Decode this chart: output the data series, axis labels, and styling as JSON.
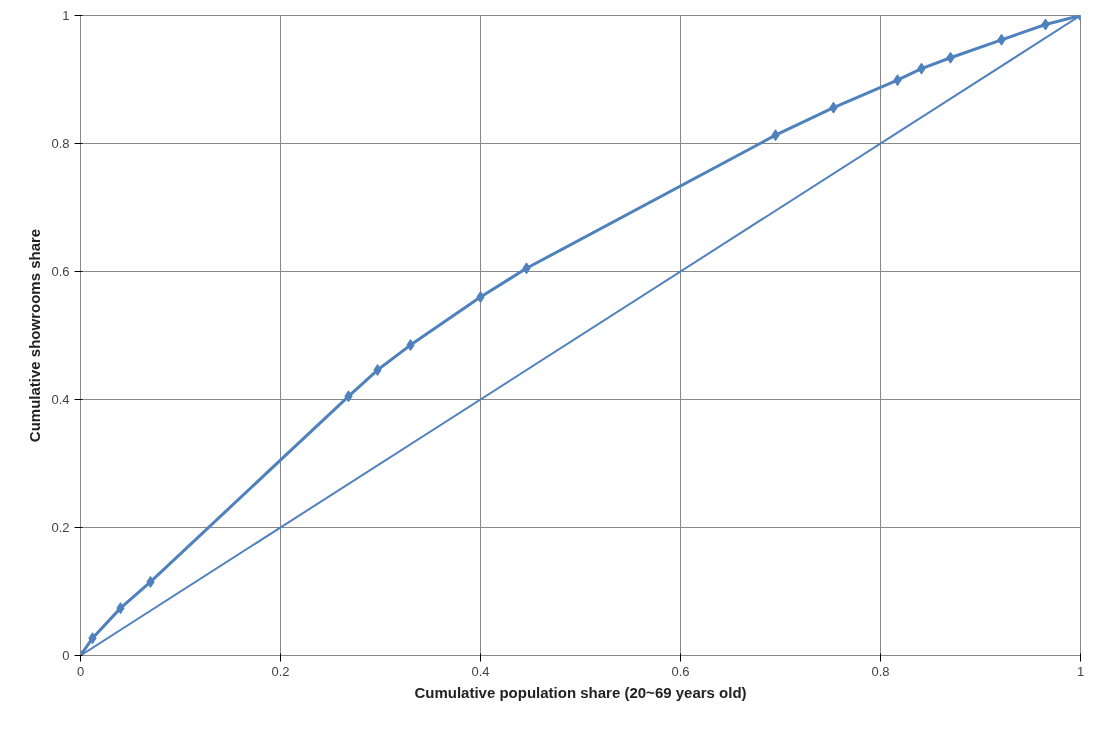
{
  "chart_data": {
    "type": "line",
    "xlabel": "Cumulative population share (20~69 years old)",
    "ylabel": "Cumulative showrooms share",
    "xlim": [
      0,
      1
    ],
    "ylim": [
      0,
      1
    ],
    "xticks": [
      0,
      0.2,
      0.4,
      0.6,
      0.8,
      1
    ],
    "yticks": [
      0,
      0.2,
      0.4,
      0.6,
      0.8,
      1
    ],
    "grid": true,
    "series": [
      {
        "color": "#4f81bd",
        "marker": "diamond",
        "x": [
          0,
          0.012,
          0.04,
          0.07,
          0.268,
          0.297,
          0.33,
          0.4,
          0.446,
          0.695,
          0.753,
          0.817,
          0.841,
          0.87,
          0.921,
          0.965,
          1
        ],
        "values": [
          0,
          0.027,
          0.074,
          0.115,
          0.405,
          0.446,
          0.485,
          0.56,
          0.605,
          0.813,
          0.856,
          0.899,
          0.917,
          0.934,
          0.962,
          0.986,
          1
        ]
      },
      {
        "color": "#4f81bd",
        "marker": "none",
        "x": [
          0,
          1
        ],
        "values": [
          0,
          1
        ]
      }
    ]
  }
}
